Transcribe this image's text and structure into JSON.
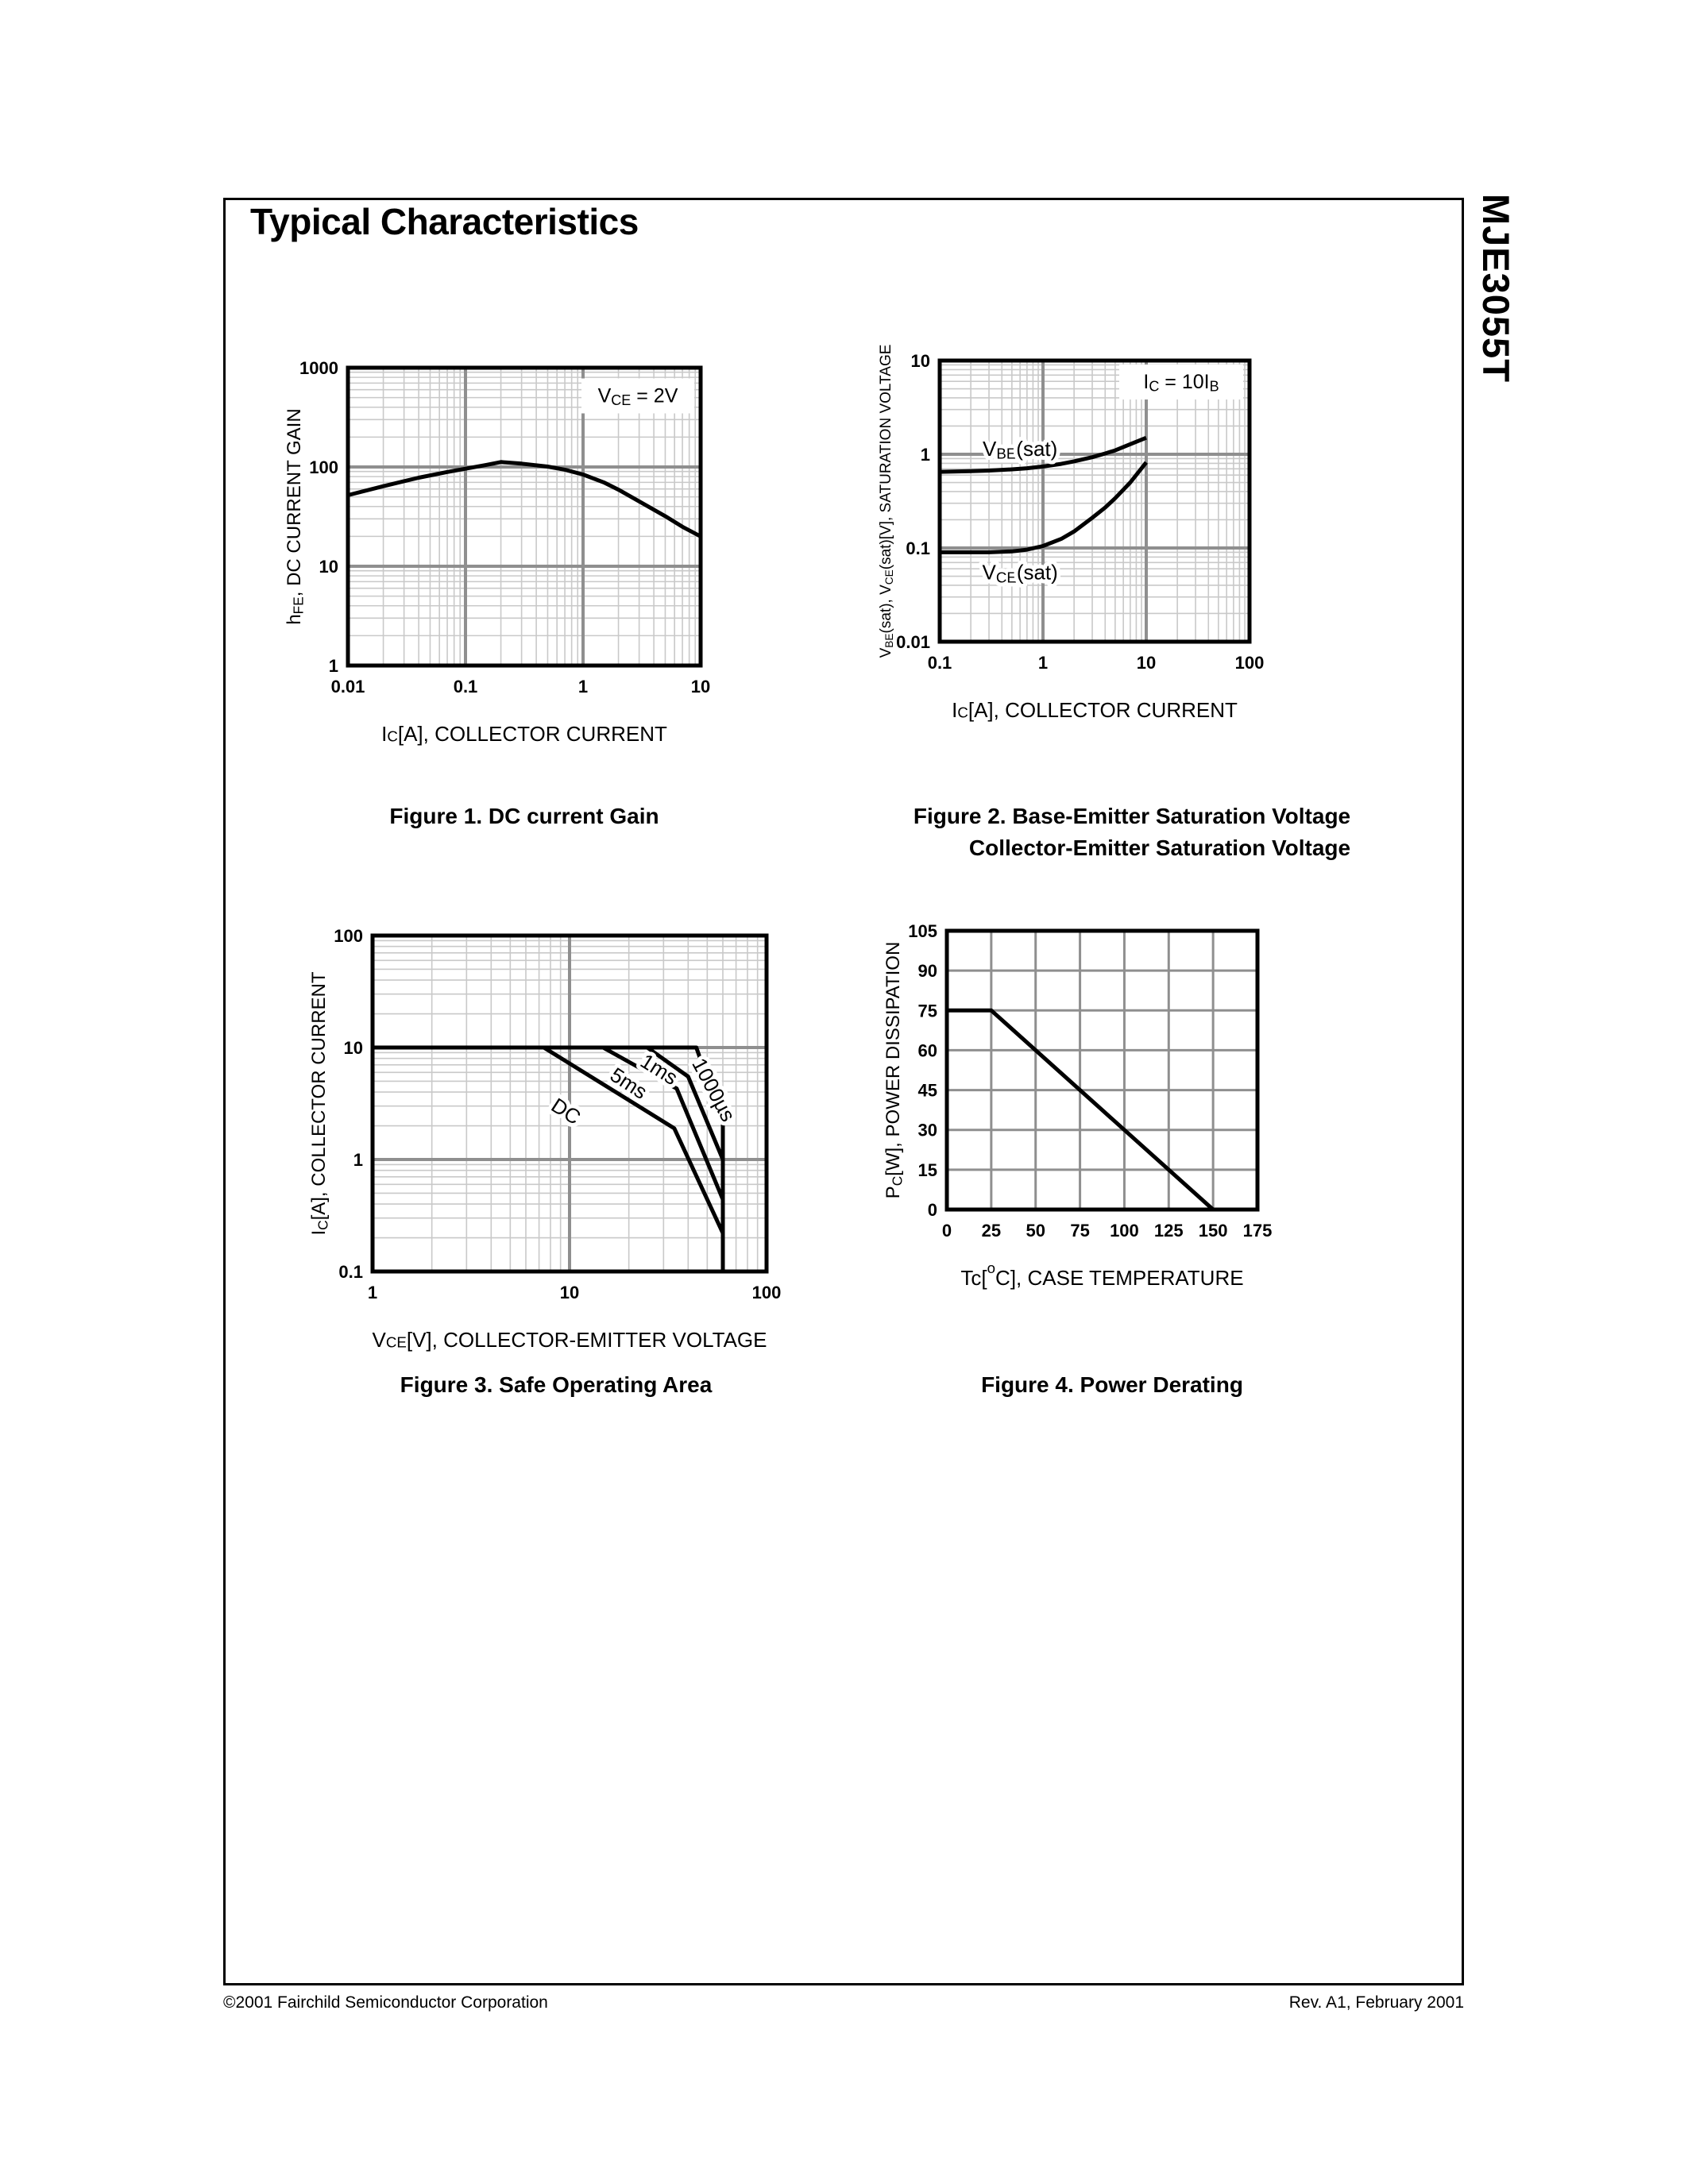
{
  "page": {
    "title": "Typical Characteristics",
    "side_label": "MJE3055T",
    "footer_left": "©2001 Fairchild Semiconductor Corporation",
    "footer_right": "Rev. A1, February 2001"
  },
  "chart_data": [
    {
      "id": "dc-current-gain",
      "type": "line",
      "title": "Figure 1. DC current Gain",
      "xlabel": "I_{C}[A], COLLECTOR CURRENT",
      "ylabel": "h_{FE}, DC CURRENT GAIN",
      "xscale": "log",
      "yscale": "log",
      "xlim": [
        0.01,
        10
      ],
      "ylim": [
        1,
        1000
      ],
      "xticks": [
        "0.01",
        "0.1",
        "1",
        "10"
      ],
      "yticks": [
        "1",
        "10",
        "100",
        "1000"
      ],
      "grid": "on",
      "legend": {
        "text": "V_{CE} = 2V",
        "x": 3.4,
        "y": 520,
        "position": "top-right"
      },
      "series": [
        {
          "name": "hFE",
          "points": [
            [
              0.01,
              52
            ],
            [
              0.02,
              64
            ],
            [
              0.04,
              78
            ],
            [
              0.07,
              89
            ],
            [
              0.1,
              96
            ],
            [
              0.15,
              105
            ],
            [
              0.2,
              112
            ],
            [
              0.3,
              108
            ],
            [
              0.5,
              101
            ],
            [
              0.7,
              94
            ],
            [
              1,
              84
            ],
            [
              1.5,
              70
            ],
            [
              2,
              59
            ],
            [
              3,
              45
            ],
            [
              5,
              32
            ],
            [
              7,
              25
            ],
            [
              10,
              20
            ]
          ]
        }
      ],
      "annotations": []
    },
    {
      "id": "saturation-voltage",
      "type": "line",
      "title": "Figure 2. Base-Emitter Saturation Voltage Collector-Emitter Saturation Voltage",
      "title_lines": [
        "Figure 2. Base-Emitter Saturation Voltage",
        "Collector-Emitter Saturation Voltage"
      ],
      "xlabel": "I_{C}[A], COLLECTOR CURRENT",
      "ylabel": "V_{BE}(sat), V_{CE}(sat)[V], SATURATION VOLTAGE",
      "xscale": "log",
      "yscale": "log",
      "xlim": [
        0.1,
        100
      ],
      "ylim": [
        0.01,
        10
      ],
      "xticks": [
        "0.1",
        "1",
        "10",
        "100"
      ],
      "yticks": [
        "0.01",
        "0.1",
        "1",
        "10"
      ],
      "grid": "on",
      "legend": {
        "text": "I_{C} = 10I_{B}",
        "x": 50,
        "y": 5.9,
        "position": "top-right"
      },
      "series": [
        {
          "name": "VBE(sat)",
          "points": [
            [
              0.1,
              0.65
            ],
            [
              0.2,
              0.66
            ],
            [
              0.3,
              0.67
            ],
            [
              0.5,
              0.69
            ],
            [
              0.7,
              0.71
            ],
            [
              1,
              0.74
            ],
            [
              1.5,
              0.79
            ],
            [
              2,
              0.84
            ],
            [
              3,
              0.93
            ],
            [
              4,
              1.02
            ],
            [
              5,
              1.1
            ],
            [
              7,
              1.28
            ],
            [
              10,
              1.5
            ]
          ]
        },
        {
          "name": "VCE(sat)",
          "points": [
            [
              0.1,
              0.09
            ],
            [
              0.3,
              0.09
            ],
            [
              0.5,
              0.092
            ],
            [
              0.7,
              0.096
            ],
            [
              1,
              0.105
            ],
            [
              1.5,
              0.125
            ],
            [
              2,
              0.15
            ],
            [
              3,
              0.21
            ],
            [
              4,
              0.27
            ],
            [
              5,
              0.34
            ],
            [
              7,
              0.5
            ],
            [
              10,
              0.82
            ]
          ]
        }
      ],
      "annotations": [
        {
          "text": "V_{BE}(sat)",
          "x": 0.6,
          "y": 1.15,
          "rot": 0
        },
        {
          "text": "V_{CE}(sat)",
          "x": 0.6,
          "y": 0.055,
          "rot": 0
        }
      ]
    },
    {
      "id": "safe-operating-area",
      "type": "line",
      "title": "Figure 3. Safe Operating Area",
      "xlabel": "V_{CE}[V], COLLECTOR-EMITTER VOLTAGE",
      "ylabel": "I_{C}[A], COLLECTOR CURRENT",
      "xscale": "log",
      "yscale": "log",
      "xlim": [
        1,
        100
      ],
      "ylim": [
        0.1,
        100
      ],
      "xticks": [
        "1",
        "10",
        "100"
      ],
      "yticks": [
        "0.1",
        "1",
        "10",
        "100"
      ],
      "grid": "on",
      "series": [
        {
          "name": "1000us-limit",
          "points": [
            [
              1,
              10
            ],
            [
              44,
              10
            ],
            [
              60,
              2.1
            ],
            [
              60,
              0.1
            ]
          ]
        },
        {
          "name": "DC",
          "points": [
            [
              7.4,
              10
            ],
            [
              34,
              1.9
            ],
            [
              60,
              0.22
            ]
          ]
        },
        {
          "name": "5ms",
          "points": [
            [
              14.8,
              10
            ],
            [
              35,
              4.3
            ],
            [
              60,
              0.44
            ]
          ]
        },
        {
          "name": "1ms",
          "points": [
            [
              24.8,
              10
            ],
            [
              40,
              5.5
            ],
            [
              60,
              1.0
            ]
          ]
        }
      ],
      "annotations": [
        {
          "text": "DC",
          "x": 9.6,
          "y": 2.7,
          "rot": 33
        },
        {
          "text": "5ms",
          "x": 20,
          "y": 4.8,
          "rot": 33
        },
        {
          "text": "1ms",
          "x": 28.5,
          "y": 6.4,
          "rot": 32
        },
        {
          "text": "1000µs",
          "x": 54,
          "y": 4.2,
          "rot": 62
        }
      ]
    },
    {
      "id": "power-derating",
      "type": "line",
      "title": "Figure 4. Power Derating",
      "xlabel": "Tc[^{o}C], CASE TEMPERATURE",
      "ylabel": "P_{C}[W], POWER DISSIPATION",
      "xscale": "linear",
      "yscale": "linear",
      "xlim": [
        0,
        175
      ],
      "ylim": [
        0,
        105
      ],
      "xticks": [
        "0",
        "25",
        "50",
        "75",
        "100",
        "125",
        "150",
        "175"
      ],
      "yticks": [
        "0",
        "15",
        "30",
        "45",
        "60",
        "75",
        "90",
        "105"
      ],
      "grid": "on",
      "series": [
        {
          "name": "max-power-dissipation",
          "points": [
            [
              0,
              75
            ],
            [
              25,
              75
            ],
            [
              150,
              0
            ]
          ]
        }
      ],
      "annotations": []
    }
  ]
}
